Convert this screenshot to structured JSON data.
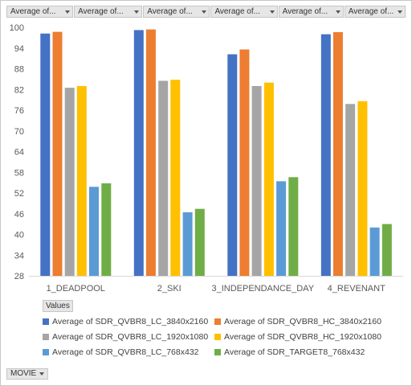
{
  "field_buttons": [
    {
      "label": "Average of..."
    },
    {
      "label": "Average of..."
    },
    {
      "label": "Average of..."
    },
    {
      "label": "Average of..."
    },
    {
      "label": "Average of..."
    },
    {
      "label": "Average of..."
    }
  ],
  "values_label": "Values",
  "movie_label": "MOVIE",
  "chart_data": {
    "type": "bar",
    "categories": [
      "1_DEADPOOL",
      "2_SKI",
      "3_INDEPENDANCE_DAY",
      "4_REVENANT"
    ],
    "ylim": [
      28,
      100
    ],
    "yticks": [
      28,
      34,
      40,
      46,
      52,
      58,
      64,
      70,
      76,
      82,
      88,
      94,
      100
    ],
    "grid": false,
    "legend_position": "bottom",
    "series": [
      {
        "name": "Average of SDR_QVBR8_LC_3840x2160",
        "color": "#4472C4",
        "values": [
          98.2,
          99.2,
          92.2,
          98.0
        ]
      },
      {
        "name": "Average of SDR_QVBR8_HC_3840x2160",
        "color": "#ED7D31",
        "values": [
          98.7,
          99.4,
          93.6,
          98.6
        ]
      },
      {
        "name": "Average of SDR_QVBR8_LC_1920x1080",
        "color": "#A5A5A5",
        "values": [
          82.5,
          84.5,
          83.0,
          77.8
        ]
      },
      {
        "name": "Average of SDR_QVBR8_HC_1920x1080",
        "color": "#FFC000",
        "values": [
          83.0,
          84.8,
          84.0,
          78.6
        ]
      },
      {
        "name": "Average of SDR_QVBR8_LC_768x432",
        "color": "#5B9BD5",
        "values": [
          53.8,
          46.4,
          55.4,
          42.0
        ]
      },
      {
        "name": "Average of SDR_TARGET8_768x432",
        "color": "#70AD47",
        "values": [
          54.8,
          47.4,
          56.6,
          43.0
        ]
      }
    ]
  }
}
